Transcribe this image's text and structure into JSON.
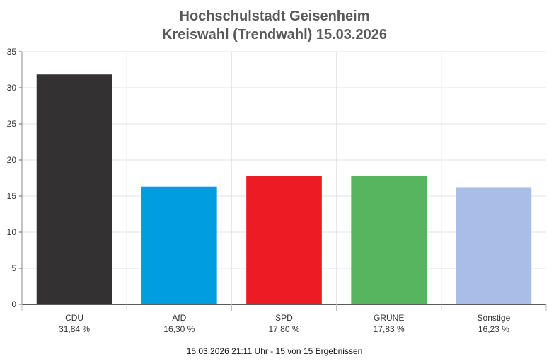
{
  "title": "Hochschulstadt Geisenheim",
  "subtitle": "Kreiswahl (Trendwahl) 15.03.2026",
  "footer": "15.03.2026 21:11 Uhr - 15 von 15 Ergebnissen",
  "chart_data": {
    "type": "bar",
    "categories": [
      "CDU",
      "AfD",
      "SPD",
      "GRÜNE",
      "Sonstige"
    ],
    "values": [
      31.84,
      16.3,
      17.8,
      17.83,
      16.23
    ],
    "value_labels": [
      "31,84 %",
      "16,30 %",
      "17,80 %",
      "17,83 %",
      "16,23 %"
    ],
    "colors": [
      "#333132",
      "#009ee0",
      "#ed1c24",
      "#57b45f",
      "#aabde6"
    ],
    "ylim": [
      0,
      35
    ],
    "yticks": [
      0,
      5,
      10,
      15,
      20,
      25,
      30,
      35
    ],
    "grid": true,
    "legend": "none"
  }
}
